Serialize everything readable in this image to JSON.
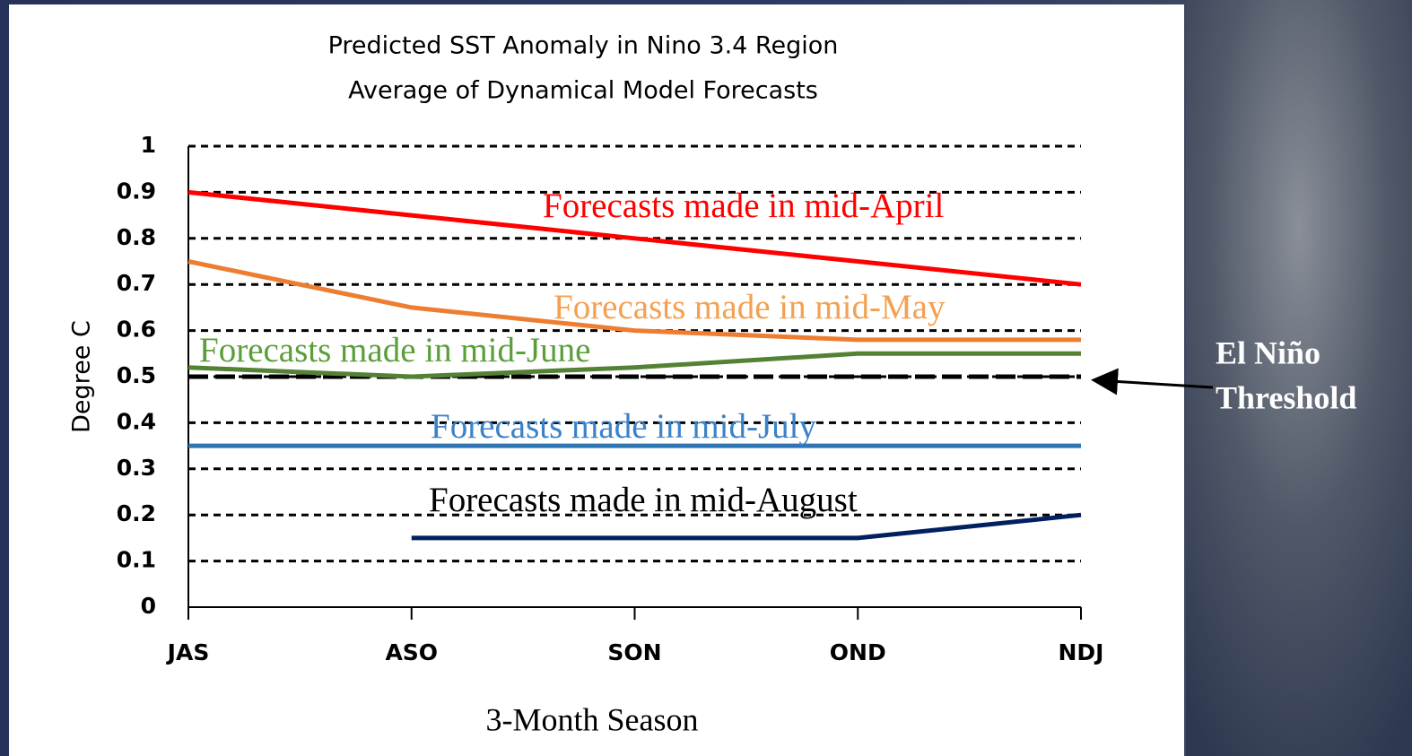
{
  "chart_data": {
    "type": "line",
    "title": "Predicted SST Anomaly in Nino 3.4 Region",
    "subtitle": "Average of Dynamical Model Forecasts",
    "x_label": "3-Month Season",
    "y_label": "Degree C",
    "categories": [
      "JAS",
      "ASO",
      "SON",
      "OND",
      "NDJ"
    ],
    "series": [
      {
        "name": "Forecasts made in mid-April",
        "color": "#ff0000",
        "values": [
          0.9,
          0.85,
          0.8,
          0.75,
          0.7
        ]
      },
      {
        "name": "Forecasts made in mid-May",
        "color": "#ed7d31",
        "values": [
          0.75,
          0.65,
          0.6,
          0.58,
          0.58
        ]
      },
      {
        "name": "Forecasts made in mid-June",
        "color": "#548235",
        "values": [
          0.52,
          0.5,
          0.52,
          0.55,
          0.55
        ]
      },
      {
        "name": "Forecasts made in mid-July",
        "color": "#2e75b6",
        "values": [
          0.35,
          0.35,
          0.35,
          0.35,
          0.35
        ]
      },
      {
        "name": "Forecasts made in mid-August",
        "color": "#002060",
        "values": [
          null,
          0.15,
          0.15,
          0.15,
          0.2
        ]
      }
    ],
    "ylim": [
      0,
      1
    ],
    "yticks": [
      0,
      0.1,
      0.2,
      0.3,
      0.4,
      0.5,
      0.6,
      0.7,
      0.8,
      0.9,
      1
    ],
    "grid": true,
    "threshold": 0.5,
    "threshold_label": [
      "El Niño",
      "Threshold"
    ]
  }
}
